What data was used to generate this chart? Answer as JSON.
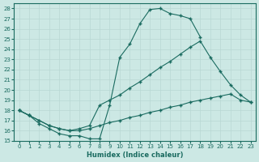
{
  "xlabel": "Humidex (Indice chaleur)",
  "bg_color": "#cce8e4",
  "line_color": "#1a6b60",
  "xlim": [
    -0.5,
    23.5
  ],
  "ylim": [
    15,
    28.5
  ],
  "xticks": [
    0,
    1,
    2,
    3,
    4,
    5,
    6,
    7,
    8,
    9,
    10,
    11,
    12,
    13,
    14,
    15,
    16,
    17,
    18,
    19,
    20,
    21,
    22,
    23
  ],
  "yticks": [
    15,
    16,
    17,
    18,
    19,
    20,
    21,
    22,
    23,
    24,
    25,
    26,
    27,
    28
  ],
  "series": [
    {
      "x": [
        0,
        1,
        2,
        3,
        4,
        5,
        6,
        7,
        8,
        9,
        10,
        11,
        12,
        13,
        14,
        15,
        16,
        17,
        18
      ],
      "y": [
        18.0,
        17.5,
        16.7,
        16.2,
        15.7,
        15.5,
        15.5,
        15.2,
        15.2,
        18.5,
        23.2,
        24.5,
        26.5,
        27.9,
        28.0,
        27.5,
        27.3,
        27.0,
        25.2
      ]
    },
    {
      "x": [
        0,
        1,
        2,
        3,
        4,
        5,
        6,
        7,
        8,
        9,
        10,
        11,
        12,
        13,
        14,
        15,
        16,
        17,
        18,
        19,
        20,
        21,
        22,
        23
      ],
      "y": [
        18.0,
        17.5,
        17.0,
        16.5,
        16.2,
        16.0,
        16.2,
        16.5,
        18.5,
        19.0,
        19.5,
        20.2,
        20.8,
        21.5,
        22.2,
        22.8,
        23.5,
        24.2,
        24.8,
        23.2,
        21.8,
        20.5,
        19.5,
        18.8
      ]
    },
    {
      "x": [
        0,
        1,
        2,
        3,
        4,
        5,
        6,
        7,
        8,
        9,
        10,
        11,
        12,
        13,
        14,
        15,
        16,
        17,
        18,
        19,
        20,
        21,
        22,
        23
      ],
      "y": [
        18.0,
        17.5,
        17.0,
        16.5,
        16.2,
        16.0,
        16.0,
        16.2,
        16.5,
        16.8,
        17.0,
        17.3,
        17.5,
        17.8,
        18.0,
        18.3,
        18.5,
        18.8,
        19.0,
        19.2,
        19.4,
        19.6,
        19.0,
        18.8
      ]
    }
  ]
}
